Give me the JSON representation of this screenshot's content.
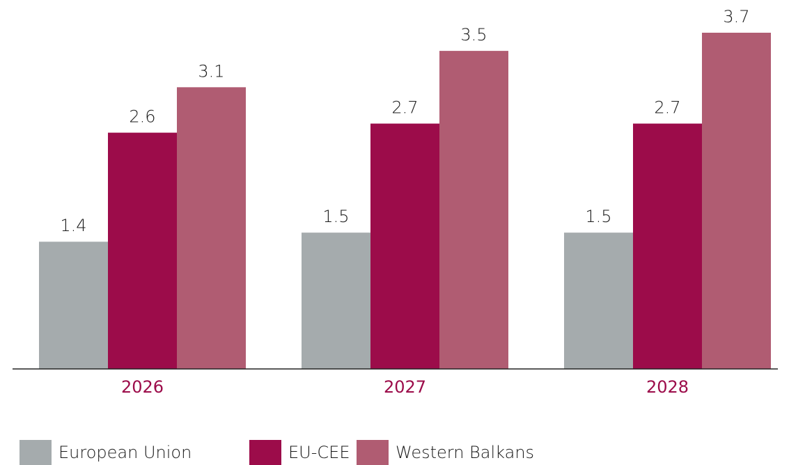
{
  "chart_data": {
    "type": "bar",
    "categories": [
      "2026",
      "2027",
      "2028"
    ],
    "series": [
      {
        "name": "European Union",
        "color": "#a5abad",
        "values": [
          1.4,
          1.5,
          1.5
        ]
      },
      {
        "name": "EU-CEE",
        "color": "#9c0c4a",
        "values": [
          2.6,
          2.7,
          2.7
        ]
      },
      {
        "name": "Western Balkans",
        "color": "#b05c72",
        "values": [
          3.1,
          3.5,
          3.7
        ]
      }
    ]
  }
}
